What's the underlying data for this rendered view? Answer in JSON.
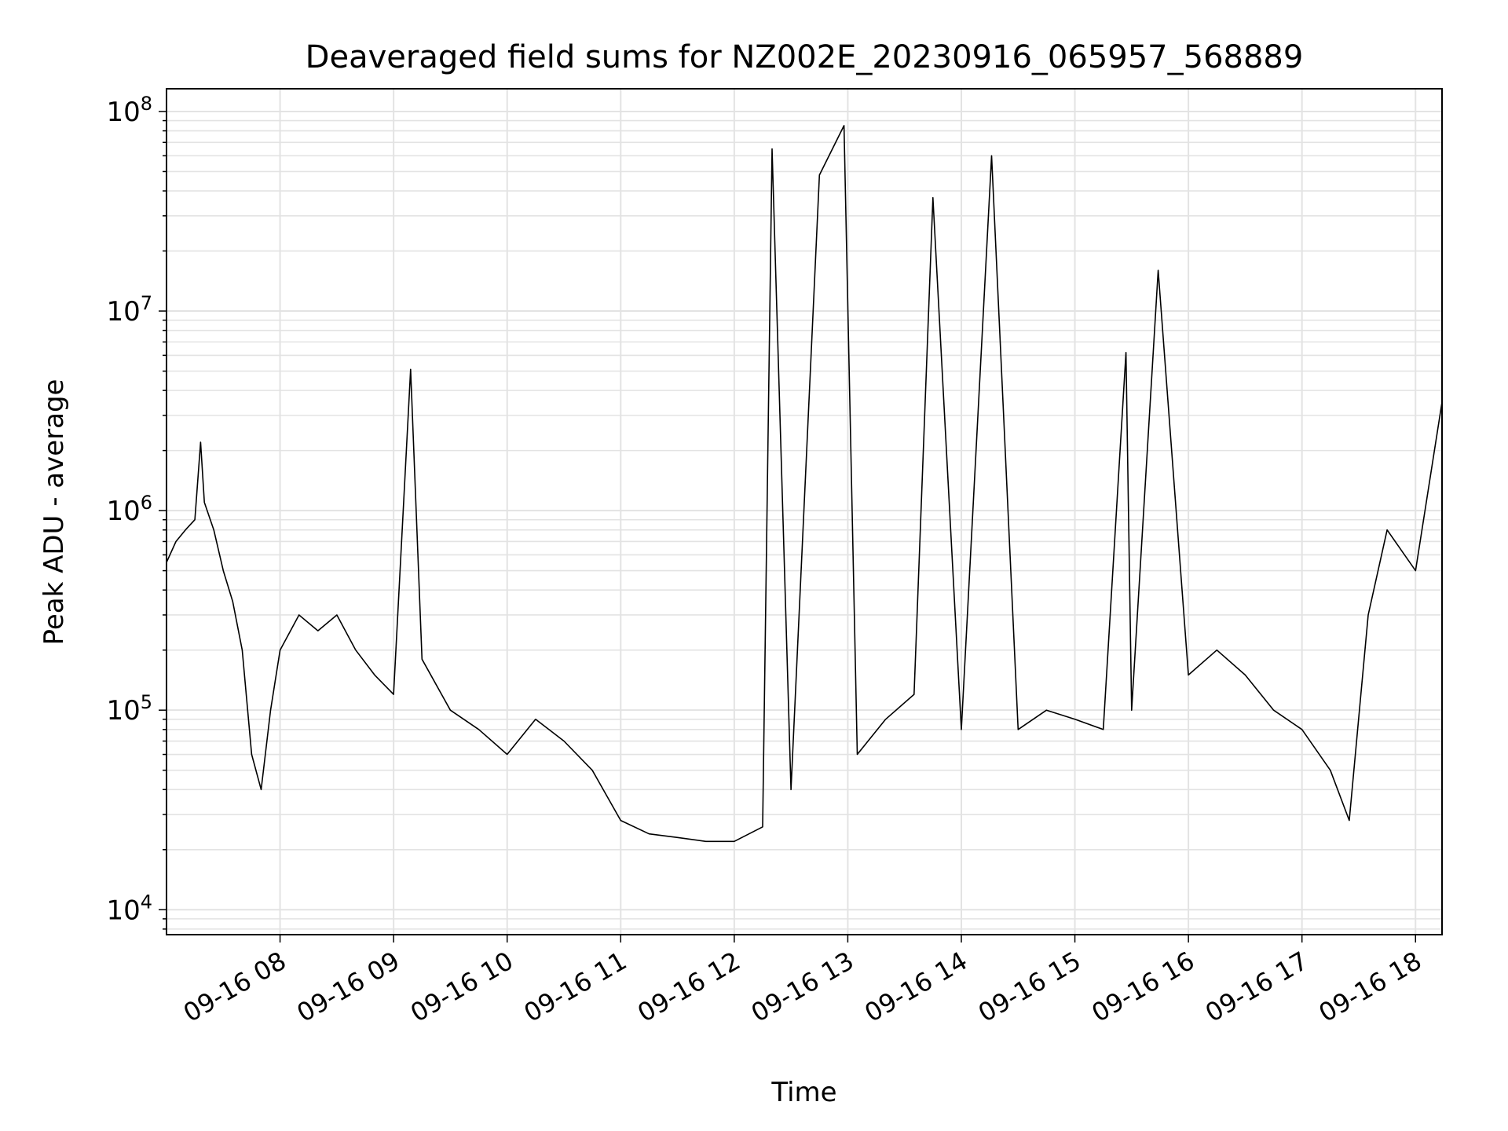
{
  "chart_data": {
    "type": "line",
    "title": "Deaveraged field sums for NZ002E_20230916_065957_568889",
    "xlabel": "Time",
    "ylabel": "Peak ADU - average",
    "yscale": "log",
    "ylim": [
      7500,
      130000000
    ],
    "xlim": [
      "2023-09-16 07:00",
      "2023-09-16 18:14"
    ],
    "grid": true,
    "legend": "none",
    "line_color": "#000000",
    "x_ticks": [
      {
        "t": "2023-09-16 08:00",
        "label": "09-16 08"
      },
      {
        "t": "2023-09-16 09:00",
        "label": "09-16 09"
      },
      {
        "t": "2023-09-16 10:00",
        "label": "09-16 10"
      },
      {
        "t": "2023-09-16 11:00",
        "label": "09-16 11"
      },
      {
        "t": "2023-09-16 12:00",
        "label": "09-16 12"
      },
      {
        "t": "2023-09-16 13:00",
        "label": "09-16 13"
      },
      {
        "t": "2023-09-16 14:00",
        "label": "09-16 14"
      },
      {
        "t": "2023-09-16 15:00",
        "label": "09-16 15"
      },
      {
        "t": "2023-09-16 16:00",
        "label": "09-16 16"
      },
      {
        "t": "2023-09-16 17:00",
        "label": "09-16 17"
      },
      {
        "t": "2023-09-16 18:00",
        "label": "09-16 18"
      }
    ],
    "y_ticks": [
      {
        "value": 10000,
        "base": "10",
        "exp": "4"
      },
      {
        "value": 100000,
        "base": "10",
        "exp": "5"
      },
      {
        "value": 1000000,
        "base": "10",
        "exp": "6"
      },
      {
        "value": 10000000,
        "base": "10",
        "exp": "7"
      },
      {
        "value": 100000000,
        "base": "10",
        "exp": "8"
      }
    ],
    "series": [
      {
        "values_note_unused": "",
        "x": [
          "2023-09-16 07:00",
          "2023-09-16 07:05",
          "2023-09-16 07:10",
          "2023-09-16 07:15",
          "2023-09-16 07:18",
          "2023-09-16 07:20",
          "2023-09-16 07:25",
          "2023-09-16 07:30",
          "2023-09-16 07:35",
          "2023-09-16 07:40",
          "2023-09-16 07:45",
          "2023-09-16 07:50",
          "2023-09-16 07:55",
          "2023-09-16 08:00",
          "2023-09-16 08:10",
          "2023-09-16 08:20",
          "2023-09-16 08:30",
          "2023-09-16 08:40",
          "2023-09-16 08:50",
          "2023-09-16 09:00",
          "2023-09-16 09:09",
          "2023-09-16 09:15",
          "2023-09-16 09:30",
          "2023-09-16 09:45",
          "2023-09-16 10:00",
          "2023-09-16 10:15",
          "2023-09-16 10:30",
          "2023-09-16 10:45",
          "2023-09-16 11:00",
          "2023-09-16 11:15",
          "2023-09-16 11:30",
          "2023-09-16 11:45",
          "2023-09-16 12:00",
          "2023-09-16 12:15",
          "2023-09-16 12:20",
          "2023-09-16 12:30",
          "2023-09-16 12:45",
          "2023-09-16 12:58",
          "2023-09-16 13:05",
          "2023-09-16 13:20",
          "2023-09-16 13:35",
          "2023-09-16 13:45",
          "2023-09-16 14:00",
          "2023-09-16 14:16",
          "2023-09-16 14:30",
          "2023-09-16 14:45",
          "2023-09-16 15:00",
          "2023-09-16 15:15",
          "2023-09-16 15:27",
          "2023-09-16 15:30",
          "2023-09-16 15:44",
          "2023-09-16 16:00",
          "2023-09-16 16:15",
          "2023-09-16 16:30",
          "2023-09-16 16:45",
          "2023-09-16 17:00",
          "2023-09-16 17:15",
          "2023-09-16 17:25",
          "2023-09-16 17:35",
          "2023-09-16 17:45",
          "2023-09-16 18:00",
          "2023-09-16 18:14"
        ],
        "values": [
          550000,
          700000,
          800000,
          900000,
          2200000,
          1100000,
          800000,
          500000,
          350000,
          200000,
          60000,
          40000,
          100000,
          200000,
          300000,
          250000,
          300000,
          200000,
          150000,
          120000,
          5100000,
          180000,
          100000,
          80000,
          60000,
          90000,
          70000,
          50000,
          28000,
          24000,
          23000,
          22000,
          22000,
          26000,
          65000000,
          40000,
          48000000,
          85000000,
          60000,
          90000,
          120000,
          37000000,
          80000,
          60000000,
          80000,
          100000,
          90000,
          80000,
          6200000,
          100000,
          16000000,
          150000,
          200000,
          150000,
          100000,
          80000,
          50000,
          28000,
          300000,
          800000,
          500000,
          3500000
        ]
      }
    ]
  }
}
